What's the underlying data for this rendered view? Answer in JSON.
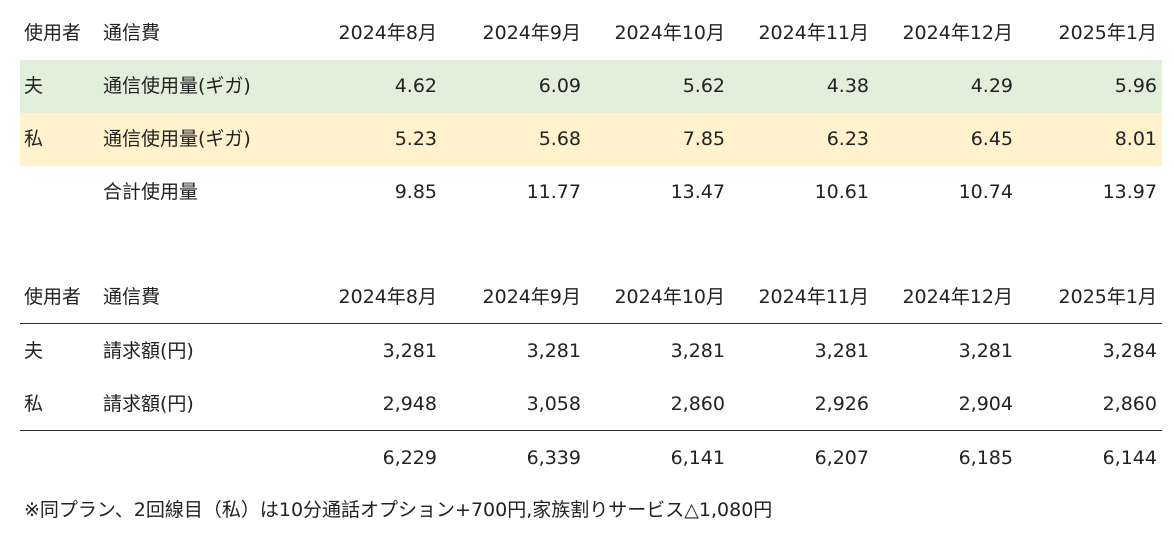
{
  "usage_table": {
    "header": {
      "user": "使用者",
      "item": "通信費",
      "months": [
        "2024年8月",
        "2024年9月",
        "2024年10月",
        "2024年11月",
        "2024年12月",
        "2025年1月"
      ]
    },
    "rows": [
      {
        "user": "夫",
        "item": "通信使用量(ギガ)",
        "values": [
          "4.62",
          "6.09",
          "5.62",
          "4.38",
          "4.29",
          "5.96"
        ]
      },
      {
        "user": "私",
        "item": "通信使用量(ギガ)",
        "values": [
          "5.23",
          "5.68",
          "7.85",
          "6.23",
          "6.45",
          "8.01"
        ]
      },
      {
        "item": "合計使用量",
        "values": [
          "9.85",
          "11.77",
          "13.47",
          "10.61",
          "10.74",
          "13.97"
        ]
      }
    ]
  },
  "billing_table": {
    "header": {
      "user": "使用者",
      "item": "通信費",
      "months": [
        "2024年8月",
        "2024年9月",
        "2024年10月",
        "2024年11月",
        "2024年12月",
        "2025年1月"
      ]
    },
    "rows": [
      {
        "user": "夫",
        "item": "請求額(円)",
        "values": [
          "3,281",
          "3,281",
          "3,281",
          "3,281",
          "3,281",
          "3,284"
        ]
      },
      {
        "user": "私",
        "item": "請求額(円)",
        "values": [
          "2,948",
          "3,058",
          "2,860",
          "2,926",
          "2,904",
          "2,860"
        ]
      },
      {
        "values": [
          "6,229",
          "6,339",
          "6,141",
          "6,207",
          "6,185",
          "6,144"
        ]
      }
    ]
  },
  "note": "※同プラン、2回線目（私）は10分通話オプション+700円,家族割りサービス△1,080円"
}
